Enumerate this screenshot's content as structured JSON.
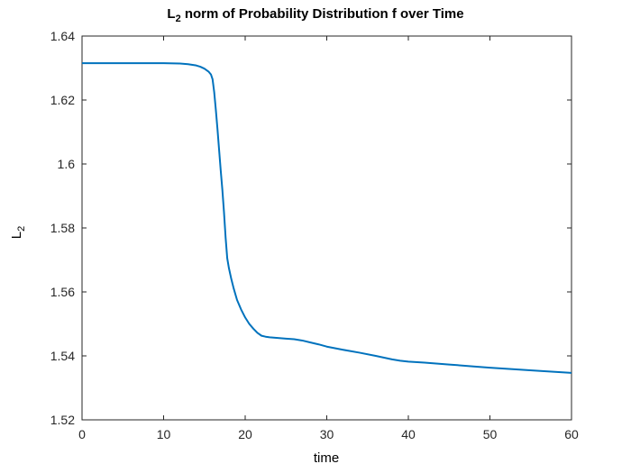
{
  "chart_data": {
    "type": "line",
    "title": {
      "main": "L",
      "sub": "2",
      "rest": " norm of Probability Distribution f over Time"
    },
    "xlabel": "time",
    "ylabel": {
      "main": "L",
      "sub": "2"
    },
    "xlim": [
      0,
      60
    ],
    "ylim": [
      1.52,
      1.64
    ],
    "xticks": [
      0,
      10,
      20,
      30,
      40,
      50,
      60
    ],
    "xtick_labels": [
      "0",
      "10",
      "20",
      "30",
      "40",
      "50",
      "60"
    ],
    "yticks": [
      1.52,
      1.54,
      1.56,
      1.58,
      1.6,
      1.62,
      1.64
    ],
    "ytick_labels": [
      "1.52",
      "1.54",
      "1.56",
      "1.58",
      "1.6",
      "1.62",
      "1.64"
    ],
    "grid": false,
    "line_color": "#0072BD",
    "series": [
      {
        "x": [
          0,
          5,
          10,
          12,
          13,
          14,
          14.5,
          15,
          15.5,
          15.8,
          16,
          16.2,
          16.4,
          16.6,
          16.8,
          17,
          17.2,
          17.4,
          17.6,
          17.8,
          18,
          18.3,
          18.6,
          19,
          19.5,
          20,
          20.5,
          21,
          21.5,
          22,
          22.5,
          23,
          24,
          25,
          26,
          27,
          28,
          29,
          30,
          32,
          34,
          36,
          38,
          39,
          40,
          42,
          45,
          48,
          50,
          53,
          56,
          58,
          60
        ],
        "y": [
          1.6315,
          1.6315,
          1.6315,
          1.6314,
          1.6312,
          1.6308,
          1.6304,
          1.6298,
          1.6289,
          1.628,
          1.6265,
          1.6225,
          1.617,
          1.611,
          1.6045,
          1.598,
          1.592,
          1.585,
          1.577,
          1.5705,
          1.5675,
          1.564,
          1.561,
          1.5575,
          1.5545,
          1.552,
          1.55,
          1.5485,
          1.5472,
          1.5463,
          1.546,
          1.5458,
          1.5456,
          1.5454,
          1.5452,
          1.5448,
          1.5442,
          1.5436,
          1.5429,
          1.5419,
          1.541,
          1.54,
          1.5389,
          1.5385,
          1.5382,
          1.5379,
          1.5373,
          1.5367,
          1.5363,
          1.5358,
          1.5353,
          1.535,
          1.5347
        ]
      }
    ]
  }
}
